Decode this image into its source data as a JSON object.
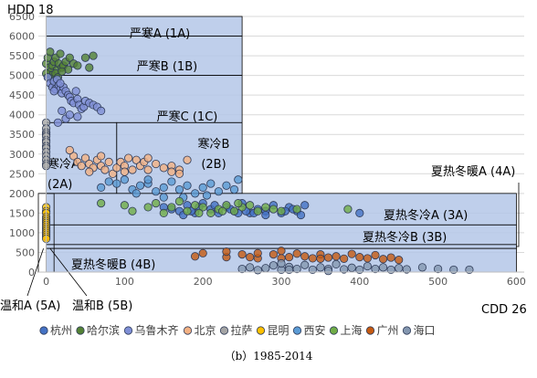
{
  "figure": {
    "y_axis_name": "HDD 18",
    "x_axis_name": "CDD 26",
    "caption": "（b）1985-2014"
  },
  "colors": {
    "region_fill": "#b4c7e7",
    "region_stroke": "#000000",
    "grid": "#d9d9d9",
    "marker_outline": "#2f3b58"
  },
  "chart_data": {
    "type": "scatter",
    "x_ticks": [
      0,
      100,
      200,
      300,
      400,
      500,
      600
    ],
    "y_ticks": [
      0,
      500,
      1000,
      1500,
      2000,
      2500,
      3000,
      3500,
      4000,
      4500,
      5000,
      5500,
      6000,
      6500
    ],
    "xlim": [
      -10,
      610
    ],
    "ylim": [
      0,
      6500
    ],
    "grid": "horizontal",
    "legend_position": "bottom",
    "regions": [
      {
        "label": "严寒A (1A)",
        "x": [
          0,
          250
        ],
        "y": [
          6000,
          6500
        ]
      },
      {
        "label": "严寒B (1B)",
        "x": [
          0,
          250
        ],
        "y": [
          5000,
          6000
        ]
      },
      {
        "label": "严寒C (1C)",
        "x": [
          0,
          250
        ],
        "y": [
          3800,
          5000
        ]
      },
      {
        "label": "寒冷A (2A)",
        "x": [
          0,
          90
        ],
        "y": [
          2000,
          3800
        ]
      },
      {
        "label": "寒冷B (2B)",
        "x": [
          90,
          250
        ],
        "y": [
          2000,
          3800
        ]
      },
      {
        "label": "夏热冬冷A (3A)",
        "x": [
          0,
          600
        ],
        "y": [
          1200,
          2000
        ]
      },
      {
        "label": "夏热冬冷B (3B)",
        "x": [
          0,
          600
        ],
        "y": [
          700,
          1200
        ]
      },
      {
        "label": "夏热冬暖A (4A)",
        "x": [
          0,
          600
        ],
        "y": [
          600,
          700
        ]
      },
      {
        "label": "夏热冬暖B (4B)",
        "x": [
          0,
          600
        ],
        "y": [
          0,
          600
        ]
      },
      {
        "label": "温和A (5A)",
        "x": [
          -10,
          0
        ],
        "y": [
          0,
          2000
        ]
      },
      {
        "label": "温和B (5B)",
        "x": [
          0,
          10
        ],
        "y": [
          0,
          2000
        ]
      }
    ],
    "series": [
      {
        "name": "杭州",
        "color": "#4472c4",
        "points": [
          [
            150,
            1650
          ],
          [
            160,
            1600
          ],
          [
            170,
            1550
          ],
          [
            180,
            1700
          ],
          [
            190,
            1500
          ],
          [
            200,
            1750
          ],
          [
            210,
            1600
          ],
          [
            220,
            1500
          ],
          [
            230,
            1650
          ],
          [
            240,
            1550
          ],
          [
            250,
            1750
          ],
          [
            260,
            1500
          ],
          [
            270,
            1600
          ],
          [
            280,
            1550
          ],
          [
            290,
            1700
          ],
          [
            300,
            1500
          ],
          [
            310,
            1650
          ],
          [
            320,
            1550
          ],
          [
            325,
            1450
          ],
          [
            330,
            1700
          ],
          [
            315,
            1600
          ],
          [
            280,
            1450
          ],
          [
            255,
            1550
          ],
          [
            265,
            1500
          ],
          [
            175,
            1450
          ],
          [
            195,
            1650
          ],
          [
            215,
            1700
          ],
          [
            235,
            1600
          ],
          [
            245,
            1500
          ],
          [
            305,
            1550
          ],
          [
            400,
            1500
          ],
          [
            185,
            1550
          ]
        ]
      },
      {
        "name": "哈尔滨",
        "color": "#548235",
        "points": [
          [
            0,
            5300
          ],
          [
            2,
            5450
          ],
          [
            4,
            5200
          ],
          [
            5,
            5600
          ],
          [
            6,
            5100
          ],
          [
            8,
            5250
          ],
          [
            10,
            5350
          ],
          [
            12,
            5450
          ],
          [
            14,
            5150
          ],
          [
            16,
            5300
          ],
          [
            18,
            5550
          ],
          [
            20,
            5200
          ],
          [
            22,
            5250
          ],
          [
            25,
            5350
          ],
          [
            28,
            5150
          ],
          [
            30,
            5450
          ],
          [
            35,
            5300
          ],
          [
            40,
            5250
          ],
          [
            50,
            5450
          ],
          [
            55,
            5200
          ],
          [
            3,
            4950
          ],
          [
            7,
            5000
          ],
          [
            9,
            4850
          ],
          [
            12,
            5050
          ],
          [
            15,
            4950
          ],
          [
            20,
            5100
          ],
          [
            0,
            5050
          ],
          [
            60,
            5500
          ]
        ]
      },
      {
        "name": "乌鲁木齐",
        "color": "#7f8fd6",
        "points": [
          [
            2,
            4950
          ],
          [
            5,
            4800
          ],
          [
            8,
            4700
          ],
          [
            10,
            4850
          ],
          [
            12,
            4650
          ],
          [
            14,
            4900
          ],
          [
            16,
            4750
          ],
          [
            18,
            4650
          ],
          [
            20,
            4550
          ],
          [
            22,
            4700
          ],
          [
            25,
            4600
          ],
          [
            28,
            4500
          ],
          [
            30,
            4450
          ],
          [
            32,
            4350
          ],
          [
            35,
            4300
          ],
          [
            38,
            4600
          ],
          [
            40,
            4400
          ],
          [
            42,
            4250
          ],
          [
            45,
            4150
          ],
          [
            48,
            4200
          ],
          [
            50,
            4350
          ],
          [
            55,
            4300
          ],
          [
            60,
            4250
          ],
          [
            65,
            4200
          ],
          [
            70,
            4100
          ],
          [
            20,
            4100
          ],
          [
            25,
            3900
          ],
          [
            30,
            4000
          ],
          [
            15,
            3800
          ],
          [
            40,
            3950
          ],
          [
            10,
            4600
          ],
          [
            18,
            4800
          ]
        ]
      },
      {
        "name": "北京",
        "color": "#f4b183",
        "points": [
          [
            35,
            2950
          ],
          [
            40,
            2800
          ],
          [
            45,
            2700
          ],
          [
            50,
            2900
          ],
          [
            55,
            2750
          ],
          [
            60,
            2650
          ],
          [
            65,
            2850
          ],
          [
            70,
            2700
          ],
          [
            75,
            2600
          ],
          [
            80,
            2800
          ],
          [
            85,
            2500
          ],
          [
            90,
            2650
          ],
          [
            95,
            2800
          ],
          [
            100,
            2700
          ],
          [
            105,
            2900
          ],
          [
            110,
            2600
          ],
          [
            115,
            2850
          ],
          [
            120,
            2700
          ],
          [
            125,
            2800
          ],
          [
            130,
            2600
          ],
          [
            140,
            2750
          ],
          [
            150,
            2650
          ],
          [
            160,
            2700
          ],
          [
            170,
            2600
          ],
          [
            30,
            3100
          ],
          [
            55,
            2550
          ],
          [
            70,
            2950
          ],
          [
            100,
            2550
          ],
          [
            130,
            2900
          ],
          [
            180,
            2850
          ],
          [
            170,
            2500
          ],
          [
            160,
            2550
          ]
        ]
      },
      {
        "name": "拉萨",
        "color": "#a5a5a5",
        "points": [
          [
            0,
            3800
          ],
          [
            0,
            3650
          ],
          [
            0,
            3550
          ],
          [
            0,
            3500
          ],
          [
            0,
            3450
          ],
          [
            0,
            3350
          ],
          [
            0,
            3300
          ],
          [
            0,
            3200
          ],
          [
            0,
            3150
          ],
          [
            0,
            3050
          ],
          [
            0,
            2950
          ],
          [
            0,
            2850
          ],
          [
            0,
            2750
          ],
          [
            0,
            2700
          ]
        ]
      },
      {
        "name": "昆明",
        "color": "#ffc000",
        "points": [
          [
            0,
            1650
          ],
          [
            0,
            1550
          ],
          [
            0,
            1500
          ],
          [
            0,
            1400
          ],
          [
            0,
            1350
          ],
          [
            0,
            1300
          ],
          [
            0,
            1250
          ],
          [
            0,
            1200
          ],
          [
            0,
            1150
          ],
          [
            0,
            1100
          ],
          [
            0,
            1050
          ],
          [
            0,
            1000
          ],
          [
            0,
            950
          ],
          [
            0,
            900
          ],
          [
            0,
            850
          ]
        ]
      },
      {
        "name": "西安",
        "color": "#5b9bd5",
        "points": [
          [
            70,
            2150
          ],
          [
            80,
            2300
          ],
          [
            90,
            2250
          ],
          [
            100,
            2350
          ],
          [
            110,
            2100
          ],
          [
            115,
            2000
          ],
          [
            120,
            2200
          ],
          [
            130,
            2250
          ],
          [
            140,
            2050
          ],
          [
            150,
            2150
          ],
          [
            160,
            2300
          ],
          [
            170,
            2100
          ],
          [
            180,
            2200
          ],
          [
            190,
            2000
          ],
          [
            200,
            2150
          ],
          [
            210,
            2250
          ],
          [
            220,
            2050
          ],
          [
            230,
            2200
          ],
          [
            240,
            2100
          ],
          [
            245,
            2350
          ],
          [
            205,
            1950
          ],
          [
            175,
            1900
          ],
          [
            150,
            1900
          ],
          [
            130,
            2350
          ]
        ]
      },
      {
        "name": "上海",
        "color": "#70ad47",
        "points": [
          [
            70,
            1750
          ],
          [
            100,
            1700
          ],
          [
            110,
            1550
          ],
          [
            130,
            1650
          ],
          [
            140,
            1750
          ],
          [
            150,
            1500
          ],
          [
            160,
            1650
          ],
          [
            170,
            1800
          ],
          [
            180,
            1550
          ],
          [
            190,
            1700
          ],
          [
            200,
            1650
          ],
          [
            210,
            1500
          ],
          [
            220,
            1600
          ],
          [
            230,
            1700
          ],
          [
            240,
            1550
          ],
          [
            250,
            1650
          ],
          [
            260,
            1700
          ],
          [
            270,
            1550
          ],
          [
            280,
            1650
          ],
          [
            290,
            1600
          ],
          [
            300,
            1550
          ],
          [
            320,
            1600
          ],
          [
            385,
            1600
          ],
          [
            245,
            1750
          ],
          [
            225,
            1550
          ],
          [
            195,
            1500
          ]
        ]
      },
      {
        "name": "广州",
        "color": "#c55a11",
        "points": [
          [
            190,
            400
          ],
          [
            200,
            480
          ],
          [
            230,
            380
          ],
          [
            250,
            450
          ],
          [
            260,
            380
          ],
          [
            270,
            350
          ],
          [
            290,
            450
          ],
          [
            300,
            540
          ],
          [
            310,
            380
          ],
          [
            320,
            470
          ],
          [
            330,
            400
          ],
          [
            340,
            350
          ],
          [
            350,
            450
          ],
          [
            360,
            370
          ],
          [
            370,
            400
          ],
          [
            380,
            340
          ],
          [
            390,
            460
          ],
          [
            400,
            380
          ],
          [
            410,
            350
          ],
          [
            420,
            430
          ],
          [
            430,
            330
          ],
          [
            440,
            370
          ],
          [
            450,
            310
          ],
          [
            230,
            520
          ],
          [
            300,
            350
          ],
          [
            270,
            480
          ],
          [
            350,
            340
          ]
        ]
      },
      {
        "name": "海口",
        "color": "#8497b0",
        "points": [
          [
            250,
            80
          ],
          [
            260,
            120
          ],
          [
            270,
            50
          ],
          [
            280,
            100
          ],
          [
            290,
            170
          ],
          [
            300,
            60
          ],
          [
            310,
            130
          ],
          [
            320,
            80
          ],
          [
            330,
            180
          ],
          [
            340,
            60
          ],
          [
            350,
            120
          ],
          [
            360,
            80
          ],
          [
            370,
            200
          ],
          [
            380,
            70
          ],
          [
            390,
            110
          ],
          [
            400,
            60
          ],
          [
            410,
            150
          ],
          [
            420,
            80
          ],
          [
            430,
            120
          ],
          [
            440,
            60
          ],
          [
            450,
            100
          ],
          [
            460,
            70
          ],
          [
            480,
            120
          ],
          [
            500,
            80
          ],
          [
            520,
            60
          ],
          [
            540,
            60
          ],
          [
            360,
            30
          ],
          [
            300,
            220
          ],
          [
            310,
            60
          ]
        ]
      }
    ]
  }
}
